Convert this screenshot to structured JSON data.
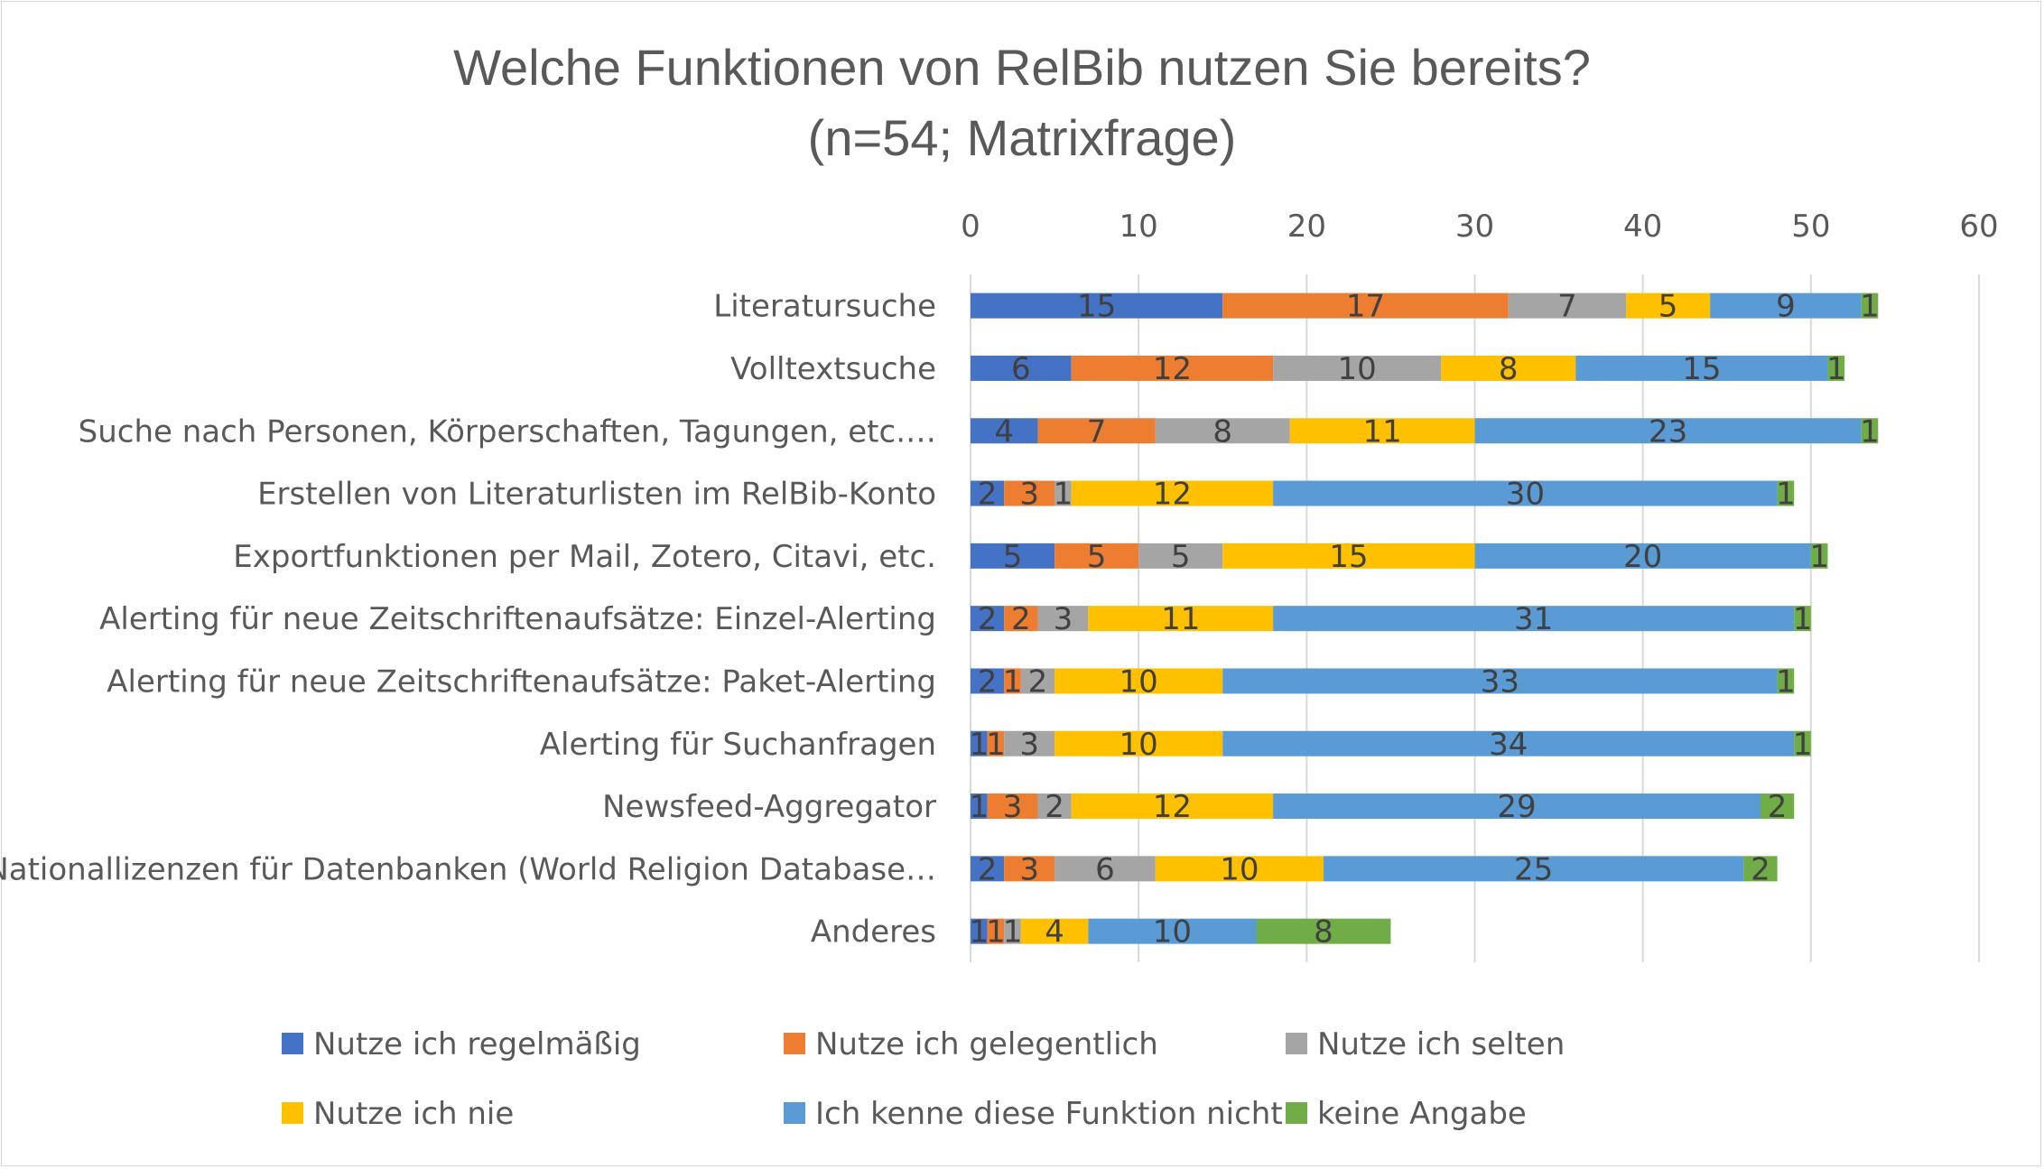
{
  "chart_data": {
    "type": "bar",
    "orientation": "horizontal",
    "stacked": true,
    "title": "Welche Funktionen von RelBib nutzen Sie bereits?",
    "subtitle": "(n=54; Matrixfrage)",
    "xlim": [
      0,
      60
    ],
    "xticks": [
      "0",
      "10",
      "20",
      "30",
      "40",
      "50",
      "60"
    ],
    "x_axis_position": "top",
    "grid": true,
    "legend_position": "bottom",
    "categories": [
      "Literatursuche",
      "Volltextsuche",
      "Suche nach Personen, Körperschaften, Tagungen, etc.…",
      "Erstellen von Literaturlisten im RelBib-Konto",
      "Exportfunktionen per Mail, Zotero, Citavi, etc.",
      "Alerting für neue Zeitschriftenaufsätze: Einzel-Alerting",
      "Alerting für neue Zeitschriftenaufsätze: Paket-Alerting",
      "Alerting für Suchanfragen",
      "Newsfeed-Aggregator",
      "Nationallizenzen für Datenbanken (World Religion Database…",
      "Anderes"
    ],
    "series": [
      {
        "name": "Nutze ich regelmäßig",
        "color": "#4472C4",
        "values": [
          15,
          6,
          4,
          2,
          5,
          2,
          2,
          1,
          1,
          2,
          1
        ]
      },
      {
        "name": "Nutze ich gelegentlich",
        "color": "#ED7D31",
        "values": [
          17,
          12,
          7,
          3,
          5,
          2,
          1,
          1,
          3,
          3,
          1
        ]
      },
      {
        "name": "Nutze ich selten",
        "color": "#A5A5A5",
        "values": [
          7,
          10,
          8,
          1,
          5,
          3,
          2,
          3,
          2,
          6,
          1
        ]
      },
      {
        "name": "Nutze ich nie",
        "color": "#FFC000",
        "values": [
          5,
          8,
          11,
          12,
          15,
          11,
          10,
          10,
          12,
          10,
          4
        ]
      },
      {
        "name": "Ich kenne diese Funktion nicht",
        "color": "#5B9BD5",
        "values": [
          9,
          15,
          23,
          30,
          20,
          31,
          33,
          34,
          29,
          25,
          10
        ]
      },
      {
        "name": "keine Angabe",
        "color": "#70AD47",
        "values": [
          1,
          1,
          1,
          1,
          1,
          1,
          1,
          1,
          2,
          2,
          8
        ]
      }
    ]
  }
}
